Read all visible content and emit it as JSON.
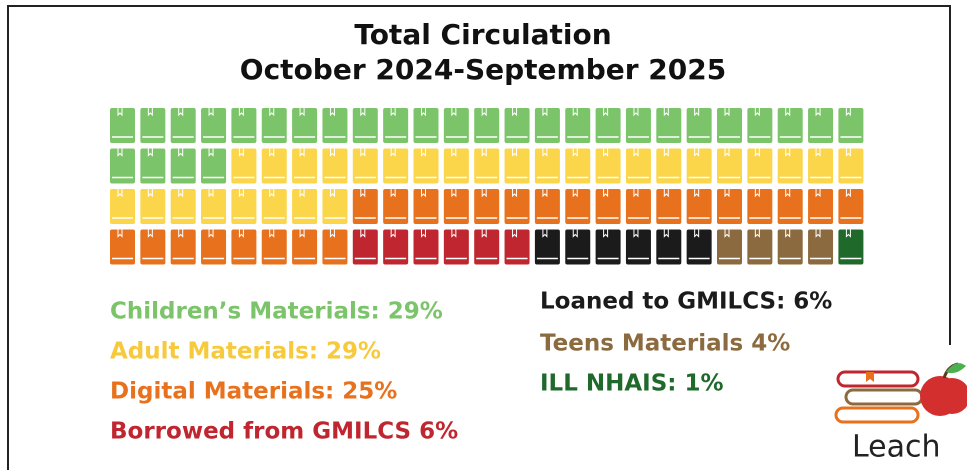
{
  "chart_data": {
    "type": "waffle",
    "title": "Total Circulation",
    "subtitle": "October 2024-September 2025",
    "categories": [
      "Children’s Materials: 29%",
      "Adult Materials: 29%",
      "Digital Materials: 25%",
      "Borrowed from GMILCS 6%",
      "Loaned to GMILCS: 6%",
      "Teens Materials 4%",
      "ILL NHAIS: 1%"
    ],
    "values": [
      29,
      29,
      25,
      6,
      6,
      4,
      1
    ],
    "colors": [
      "#7cc46a",
      "#fbd54a",
      "#e8711d",
      "#c0262f",
      "#1b1b1b",
      "#8c6a3f",
      "#1f6a2b"
    ],
    "text_colors": [
      "#7cc46a",
      "#f7c93c",
      "#e8711d",
      "#c0262f",
      "#1b1b1b",
      "#8c6a3f",
      "#1f6a2b"
    ],
    "logo_text": "Leach"
  }
}
